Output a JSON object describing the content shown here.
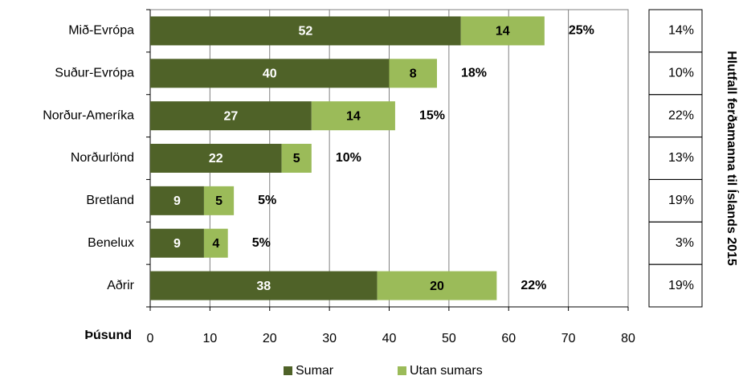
{
  "chart_data": {
    "type": "bar",
    "orientation": "horizontal",
    "stacked": true,
    "categories": [
      "Mið-Evrópa",
      "Suður-Evrópa",
      "Norður-Ameríka",
      "Norðurlönd",
      "Bretland",
      "Benelux",
      "Aðrir"
    ],
    "series": [
      {
        "name": "Sumar",
        "color": "#4f6228",
        "label_color": "#ffffff",
        "values": [
          52,
          40,
          27,
          22,
          9,
          9,
          38
        ]
      },
      {
        "name": "Utan sumars",
        "color": "#9bbb59",
        "label_color": "#000000",
        "values": [
          14,
          8,
          14,
          5,
          5,
          4,
          20
        ]
      }
    ],
    "total_share": {
      "values": [
        25,
        18,
        15,
        10,
        5,
        5,
        22
      ],
      "value_labels": [
        "25%",
        "18%",
        "15%",
        "10%",
        "5%",
        "5%",
        "22%"
      ]
    },
    "share_2015": {
      "title": "Hlutfall ferðamanna til Íslands 2015",
      "values": [
        14,
        10,
        22,
        13,
        19,
        3,
        19
      ],
      "value_labels": [
        "14%",
        "10%",
        "22%",
        "13%",
        "19%",
        "3%",
        "19%"
      ]
    },
    "xlabel": "Þúsund",
    "xlim": [
      0,
      80
    ],
    "xticks": [
      0,
      10,
      20,
      30,
      40,
      50,
      60,
      70,
      80
    ],
    "grid": true,
    "legend": "bottom"
  }
}
